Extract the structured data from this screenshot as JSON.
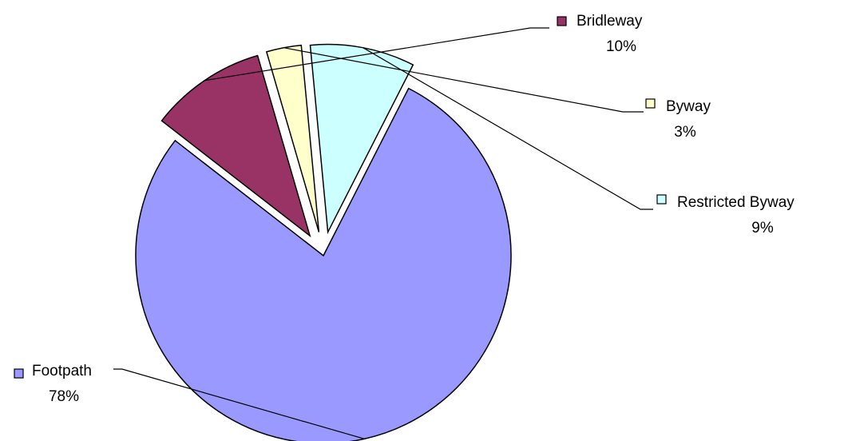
{
  "chart_data": {
    "type": "pie",
    "title": "",
    "slices": [
      {
        "name": "Footpath",
        "percent_label": "78%",
        "value": 78,
        "color": "#9999FF",
        "exploded": false
      },
      {
        "name": "Bridleway",
        "percent_label": "10%",
        "value": 10,
        "color": "#993366",
        "exploded": true
      },
      {
        "name": "Byway",
        "percent_label": "3%",
        "value": 3,
        "color": "#FFFFCC",
        "exploded": true
      },
      {
        "name": "Restricted Byway",
        "percent_label": "9%",
        "value": 9,
        "color": "#CCFFFF",
        "exploded": true
      }
    ],
    "legend": "none",
    "data_labels": "outside-with-leader-lines"
  }
}
